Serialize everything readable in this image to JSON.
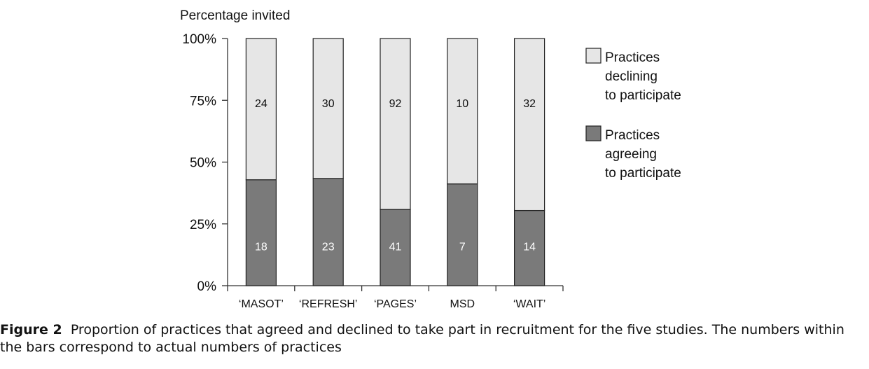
{
  "chart_data": {
    "type": "bar",
    "stacked": true,
    "normalized": true,
    "ylabel": "Percentage invited",
    "yticks": [
      "0%",
      "25%",
      "50%",
      "75%",
      "100%"
    ],
    "ylim": [
      0,
      100
    ],
    "categories": [
      "‘MASOT’",
      "‘REFRESH’",
      "‘PAGES’",
      "MSD",
      "‘WAIT’"
    ],
    "series": [
      {
        "name": "Practices agreeing to participate",
        "values": [
          18,
          23,
          41,
          7,
          14
        ],
        "color": "#7a7a7a",
        "label_color": "#ffffff"
      },
      {
        "name": "Practices declining to participate",
        "values": [
          24,
          30,
          92,
          10,
          32
        ],
        "color": "#e6e6e6",
        "label_color": "#111111"
      }
    ],
    "legend": {
      "placement": "right",
      "entries": [
        {
          "lines": [
            "Practices",
            "declining",
            "to participate"
          ],
          "color": "#e6e6e6"
        },
        {
          "lines": [
            "Practices",
            "agreeing",
            "to participate"
          ],
          "color": "#7a7a7a"
        }
      ]
    },
    "grid": false
  },
  "caption": {
    "label": "Figure 2",
    "text": "Proportion of practices that agreed and declined to take part in recruitment for the five studies. The numbers within the bars correspond to actual numbers of practices"
  }
}
